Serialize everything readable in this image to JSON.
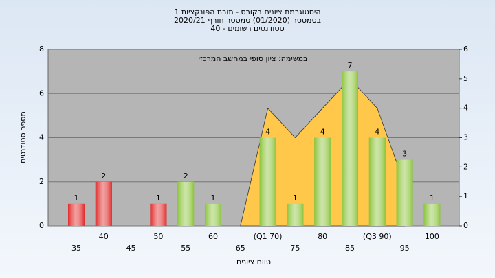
{
  "chart_data": {
    "type": "bar",
    "title": "היסטוגרמת ציונים בקורס - תורת הפונקציות 1",
    "subtitle": "בסמסטר (01/2020) סמסטר חורף 2020/21",
    "subtitle2": "סטודנטים רשומים - 40",
    "annotation": "במשימה: ציון סופי במחשב המרכזי",
    "ylabel": "מספר סטודנטים",
    "xlabel": "טווח ציונים",
    "categories": [
      "35",
      "40",
      "45",
      "50",
      "55",
      "60",
      "65",
      "(Q1 70)",
      "75",
      "80",
      "85",
      "(Q3 90)",
      "95",
      "100"
    ],
    "values": [
      1,
      2,
      null,
      1,
      2,
      1,
      null,
      4,
      1,
      4,
      7,
      4,
      3,
      1
    ],
    "colors": [
      "#e02a2a",
      "#e02a2a",
      "#e02a2a",
      "#e02a2a",
      "#8cc43c",
      "#8cc43c",
      "#8cc43c",
      "#8cc43c",
      "#8cc43c",
      "#8cc43c",
      "#8cc43c",
      "#8cc43c",
      "#8cc43c",
      "#8cc43c"
    ],
    "area": {
      "axis": "y2",
      "color": "#ffc84a",
      "values": [
        null,
        null,
        null,
        null,
        null,
        null,
        0,
        4,
        3,
        4,
        5,
        4,
        1.4,
        null
      ]
    },
    "ylim": [
      0,
      8
    ],
    "yticks": [
      0,
      2,
      4,
      6,
      8
    ],
    "y2lim": [
      0,
      6
    ],
    "y2ticks": [
      0,
      1,
      2,
      3,
      4,
      5,
      6
    ],
    "grid": true
  }
}
